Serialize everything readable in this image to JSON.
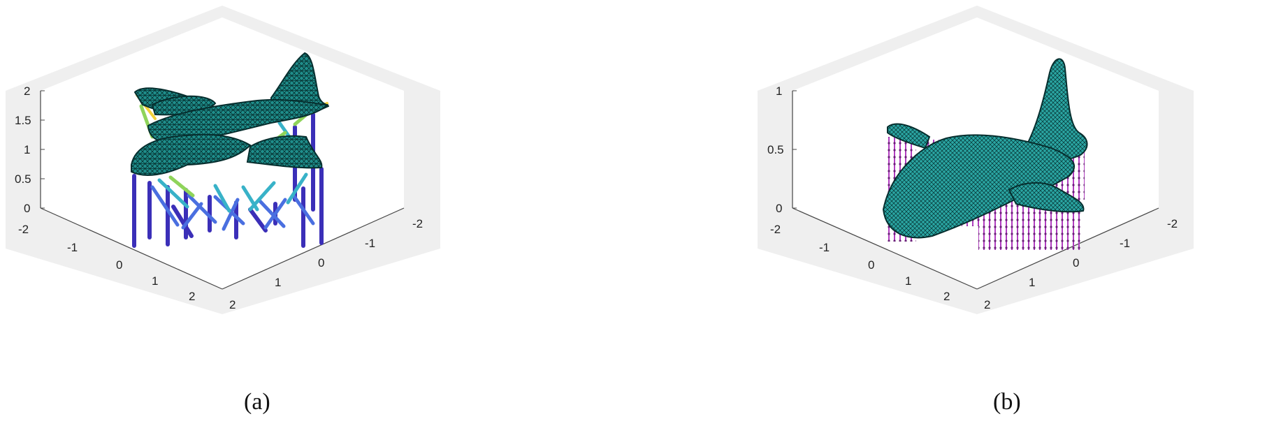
{
  "captions": {
    "a": "(a)",
    "b": "(b)"
  },
  "figures": {
    "a": {
      "z_ticks": [
        "2",
        "1.5",
        "1",
        "0.5",
        "0"
      ],
      "left_axis_ticks": [
        "-2",
        "-1",
        "0",
        "1",
        "2"
      ],
      "right_axis_ticks": [
        "-2",
        "-1",
        "0",
        "1",
        "2"
      ],
      "model": "aircraft mesh with lattice support structure",
      "support_colors": [
        "#3b2fb8",
        "#4a6fe0",
        "#38b2c8",
        "#8fd45a",
        "#f2d03a"
      ]
    },
    "b": {
      "z_ticks": [
        "1",
        "0.5",
        "0"
      ],
      "left_axis_ticks": [
        "-2",
        "-1",
        "0",
        "1",
        "2"
      ],
      "right_axis_ticks": [
        "-2",
        "-1",
        "0",
        "1",
        "2"
      ],
      "model": "aircraft mesh with tree support pins",
      "support_colors": [
        "#c040c0",
        "#8a2a9a"
      ]
    }
  },
  "colors": {
    "axes_background": "#efefef",
    "floor": "#ffffff",
    "mesh_fill": "#1f8f8c",
    "mesh_line": "#062e2e"
  }
}
